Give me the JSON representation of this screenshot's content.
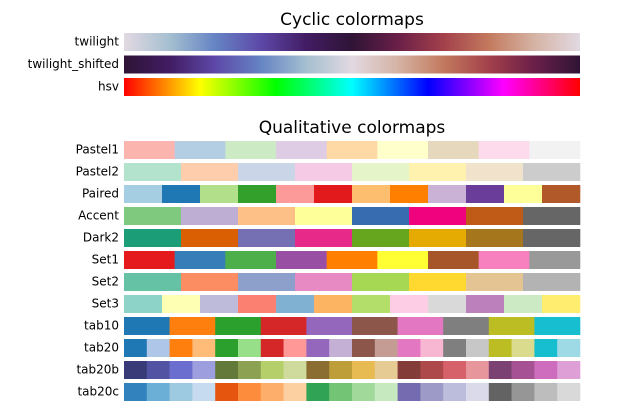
{
  "panels": [
    {
      "title": "Cyclic colormaps",
      "kind": "gradient",
      "colormaps": [
        {
          "name": "twilight",
          "colors": [
            "#e2d9e2",
            "#a5bfd0",
            "#6584c4",
            "#5d48a8",
            "#421c63",
            "#2f1436",
            "#6a1f48",
            "#a3404b",
            "#c37a5e",
            "#d5b3a4",
            "#e2d9e2"
          ]
        },
        {
          "name": "twilight_shifted",
          "colors": [
            "#2f1436",
            "#421c63",
            "#5d48a8",
            "#6584c4",
            "#a5bfd0",
            "#e2d9e2",
            "#d5b3a4",
            "#c37a5e",
            "#a3404b",
            "#6a1f48",
            "#2f1436"
          ]
        },
        {
          "name": "hsv",
          "colors": [
            "#ff0000",
            "#ffff00",
            "#00ff00",
            "#00ffff",
            "#0000ff",
            "#ff00ff",
            "#ff0000"
          ]
        }
      ]
    },
    {
      "title": "Qualitative colormaps",
      "kind": "discrete",
      "colormaps": [
        {
          "name": "Pastel1",
          "colors": [
            "#fbb4ae",
            "#b3cde3",
            "#ccebc5",
            "#decbe4",
            "#fed9a6",
            "#ffffcc",
            "#e5d8bd",
            "#fddaec",
            "#f2f2f2"
          ]
        },
        {
          "name": "Pastel2",
          "colors": [
            "#b3e2cd",
            "#fdcdac",
            "#cbd5e8",
            "#f4cae4",
            "#e6f5c9",
            "#fff2ae",
            "#f1e2cc",
            "#cccccc"
          ]
        },
        {
          "name": "Paired",
          "colors": [
            "#a6cee3",
            "#1f78b4",
            "#b2df8a",
            "#33a02c",
            "#fb9a99",
            "#e31a1c",
            "#fdbf6f",
            "#ff7f00",
            "#cab2d6",
            "#6a3d9a",
            "#ffff99",
            "#b15928"
          ]
        },
        {
          "name": "Accent",
          "colors": [
            "#7fc97f",
            "#beaed4",
            "#fdc086",
            "#ffff99",
            "#386cb0",
            "#f0027f",
            "#bf5b17",
            "#666666"
          ]
        },
        {
          "name": "Dark2",
          "colors": [
            "#1b9e77",
            "#d95f02",
            "#7570b3",
            "#e7298a",
            "#66a61e",
            "#e6ab02",
            "#a6761d",
            "#666666"
          ]
        },
        {
          "name": "Set1",
          "colors": [
            "#e41a1c",
            "#377eb8",
            "#4daf4a",
            "#984ea3",
            "#ff7f00",
            "#ffff33",
            "#a65628",
            "#f781bf",
            "#999999"
          ]
        },
        {
          "name": "Set2",
          "colors": [
            "#66c2a5",
            "#fc8d62",
            "#8da0cb",
            "#e78ac3",
            "#a6d854",
            "#ffd92f",
            "#e5c494",
            "#b3b3b3"
          ]
        },
        {
          "name": "Set3",
          "colors": [
            "#8dd3c7",
            "#ffffb3",
            "#bebada",
            "#fb8072",
            "#80b1d3",
            "#fdb462",
            "#b3de69",
            "#fccde5",
            "#d9d9d9",
            "#bc80bd",
            "#ccebc5",
            "#ffed6f"
          ]
        },
        {
          "name": "tab10",
          "colors": [
            "#1f77b4",
            "#ff7f0e",
            "#2ca02c",
            "#d62728",
            "#9467bd",
            "#8c564b",
            "#e377c2",
            "#7f7f7f",
            "#bcbd22",
            "#17becf"
          ]
        },
        {
          "name": "tab20",
          "colors": [
            "#1f77b4",
            "#aec7e8",
            "#ff7f0e",
            "#ffbb78",
            "#2ca02c",
            "#98df8a",
            "#d62728",
            "#ff9896",
            "#9467bd",
            "#c5b0d5",
            "#8c564b",
            "#c49c94",
            "#e377c2",
            "#f7b6d2",
            "#7f7f7f",
            "#c7c7c7",
            "#bcbd22",
            "#dbdb8d",
            "#17becf",
            "#9edae5"
          ]
        },
        {
          "name": "tab20b",
          "colors": [
            "#393b79",
            "#5254a3",
            "#6b6ecf",
            "#9c9ede",
            "#637939",
            "#8ca252",
            "#b5cf6b",
            "#cedb9c",
            "#8c6d31",
            "#bd9e39",
            "#e7ba52",
            "#e7cb94",
            "#843c39",
            "#ad494a",
            "#d6616b",
            "#e7969c",
            "#7b4173",
            "#a55194",
            "#ce6dbd",
            "#de9ed6"
          ]
        },
        {
          "name": "tab20c",
          "colors": [
            "#3182bd",
            "#6baed6",
            "#9ecae1",
            "#c6dbef",
            "#e6550d",
            "#fd8d3c",
            "#fdae6b",
            "#fdd0a2",
            "#31a354",
            "#74c476",
            "#a1d99b",
            "#c7e9c0",
            "#756bb1",
            "#9e9ac8",
            "#bcbddc",
            "#dadaeb",
            "#636363",
            "#969696",
            "#bdbdbd",
            "#d9d9d9"
          ]
        }
      ]
    }
  ]
}
